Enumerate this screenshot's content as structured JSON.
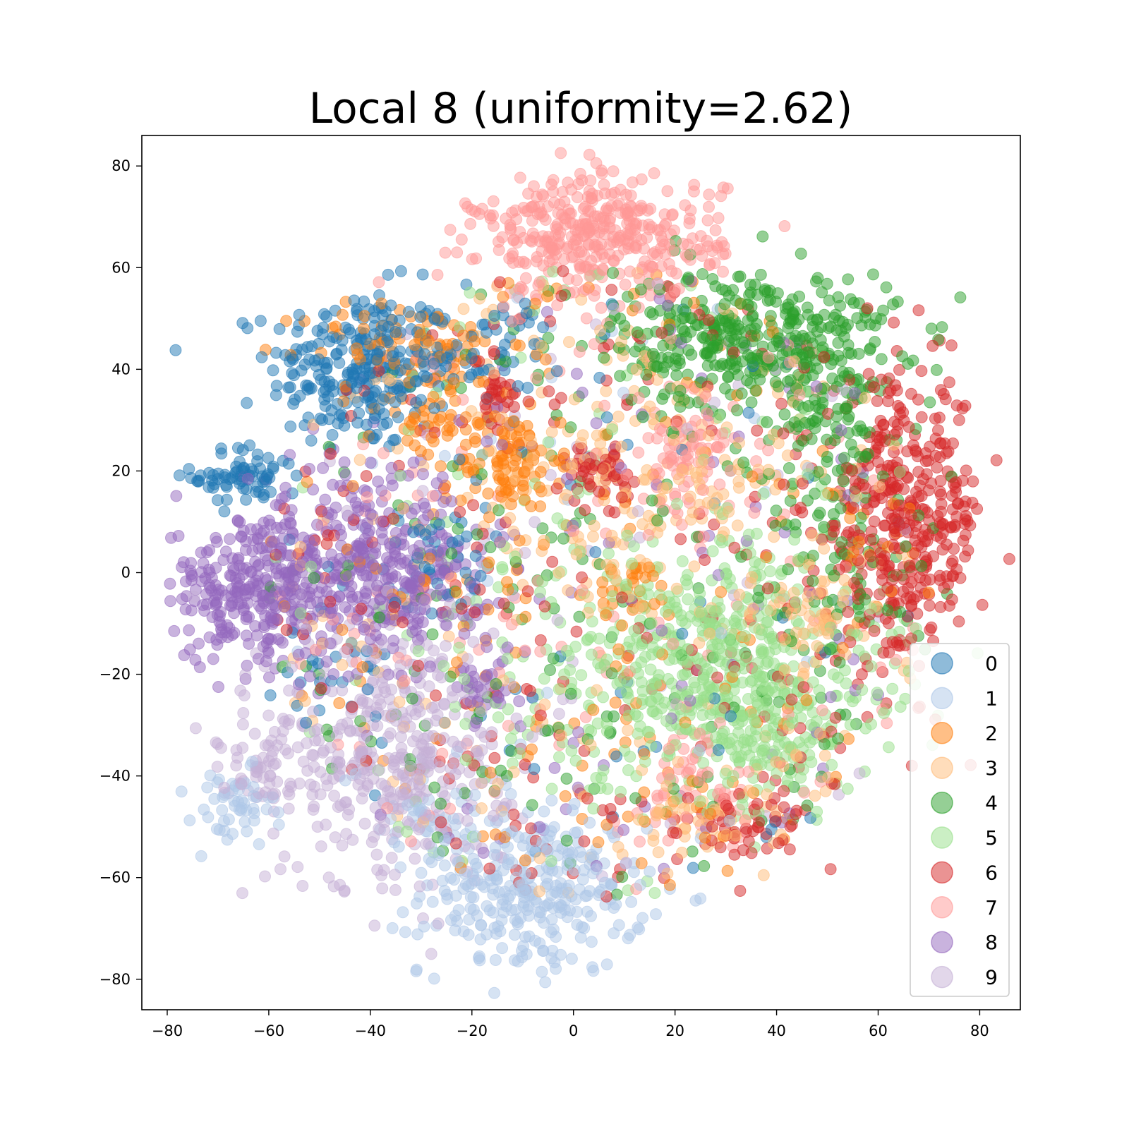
{
  "chart_data": {
    "type": "scatter",
    "title": "Local 8 (uniformity=2.62)",
    "xlabel": "",
    "ylabel": "",
    "xlim": [
      -85,
      88
    ],
    "ylim": [
      -86,
      86
    ],
    "xticks": [
      -80,
      -60,
      -40,
      -20,
      0,
      20,
      40,
      60,
      80
    ],
    "yticks": [
      -80,
      -60,
      -40,
      -20,
      0,
      20,
      40,
      60,
      80
    ],
    "xtick_labels": [
      "−80",
      "−60",
      "−40",
      "−20",
      "0",
      "20",
      "40",
      "60",
      "80"
    ],
    "ytick_labels": [
      "−80",
      "−60",
      "−40",
      "−20",
      "0",
      "20",
      "40",
      "60",
      "80"
    ],
    "grid": false,
    "legend_position": "lower-right",
    "marker_alpha": 0.5,
    "series": [
      {
        "name": "0",
        "color": "#1f77b4",
        "clusters": [
          {
            "center": [
              -42,
              40
            ],
            "spread": [
              9,
              8
            ],
            "count": 260
          },
          {
            "center": [
              -65,
              19
            ],
            "spread": [
              5,
              3
            ],
            "count": 70
          },
          {
            "center": [
              -27,
              3
            ],
            "spread": [
              5,
              5
            ],
            "count": 40
          },
          {
            "center": [
              -20,
              44
            ],
            "spread": [
              9,
              5
            ],
            "count": 60
          },
          {
            "center": [
              -48,
              -22
            ],
            "spread": [
              5,
              3
            ],
            "count": 20
          }
        ],
        "scatter_count": 60
      },
      {
        "name": "1",
        "color": "#aec7e8",
        "clusters": [
          {
            "center": [
              -8,
              -63
            ],
            "spread": [
              11,
              8
            ],
            "count": 300
          },
          {
            "center": [
              -67,
              -47
            ],
            "spread": [
              4,
              4
            ],
            "count": 50
          },
          {
            "center": [
              -30,
              -48
            ],
            "spread": [
              8,
              7
            ],
            "count": 40
          }
        ],
        "scatter_count": 40
      },
      {
        "name": "2",
        "color": "#ff7f0e",
        "clusters": [
          {
            "center": [
              -13,
              22
            ],
            "spread": [
              5,
              5
            ],
            "count": 90
          },
          {
            "center": [
              -33,
              45
            ],
            "spread": [
              10,
              4
            ],
            "count": 70
          },
          {
            "center": [
              -27,
              33
            ],
            "spread": [
              5,
              4
            ],
            "count": 40
          },
          {
            "center": [
              12,
              -4
            ],
            "spread": [
              4,
              3
            ],
            "count": 30
          }
        ],
        "scatter_count": 200
      },
      {
        "name": "3",
        "color": "#ffbb78",
        "clusters": [
          {
            "center": [
              15,
              20
            ],
            "spread": [
              15,
              12
            ],
            "count": 150
          },
          {
            "center": [
              45,
              -10
            ],
            "spread": [
              8,
              5
            ],
            "count": 60
          },
          {
            "center": [
              25,
              -48
            ],
            "spread": [
              6,
              4
            ],
            "count": 40
          }
        ],
        "scatter_count": 220
      },
      {
        "name": "4",
        "color": "#2ca02c",
        "clusters": [
          {
            "center": [
              36,
              46
            ],
            "spread": [
              14,
              7
            ],
            "count": 380
          },
          {
            "center": [
              55,
              5
            ],
            "spread": [
              8,
              12
            ],
            "count": 80
          },
          {
            "center": [
              48,
              30
            ],
            "spread": [
              8,
              6
            ],
            "count": 60
          }
        ],
        "scatter_count": 200
      },
      {
        "name": "5",
        "color": "#98df8a",
        "clusters": [
          {
            "center": [
              25,
              -18
            ],
            "spread": [
              18,
              12
            ],
            "count": 480
          },
          {
            "center": [
              40,
              -30
            ],
            "spread": [
              9,
              6
            ],
            "count": 120
          }
        ],
        "scatter_count": 160
      },
      {
        "name": "6",
        "color": "#d62728",
        "clusters": [
          {
            "center": [
              65,
              10
            ],
            "spread": [
              8,
              14
            ],
            "count": 380
          },
          {
            "center": [
              5,
              19
            ],
            "spread": [
              3,
              3
            ],
            "count": 45
          },
          {
            "center": [
              -15,
              35
            ],
            "spread": [
              2,
              3
            ],
            "count": 30
          },
          {
            "center": [
              35,
              -50
            ],
            "spread": [
              6,
              4
            ],
            "count": 50
          }
        ],
        "scatter_count": 250
      },
      {
        "name": "7",
        "color": "#ff9896",
        "clusters": [
          {
            "center": [
              5,
              66
            ],
            "spread": [
              12,
              6
            ],
            "count": 380
          },
          {
            "center": [
              22,
              22
            ],
            "spread": [
              5,
              6
            ],
            "count": 80
          },
          {
            "center": [
              25,
              -40
            ],
            "spread": [
              5,
              5
            ],
            "count": 40
          }
        ],
        "scatter_count": 150
      },
      {
        "name": "8",
        "color": "#9467bd",
        "clusters": [
          {
            "center": [
              -63,
              -3
            ],
            "spread": [
              8,
              7
            ],
            "count": 280
          },
          {
            "center": [
              -38,
              -1
            ],
            "spread": [
              11,
              7
            ],
            "count": 300
          },
          {
            "center": [
              -17,
              -23
            ],
            "spread": [
              3,
              3
            ],
            "count": 30
          },
          {
            "center": [
              -47,
              15
            ],
            "spread": [
              10,
              6
            ],
            "count": 60
          }
        ],
        "scatter_count": 120
      },
      {
        "name": "9",
        "color": "#c5b0d5",
        "clusters": [
          {
            "center": [
              -36,
              -35
            ],
            "spread": [
              12,
              14
            ],
            "count": 420
          },
          {
            "center": [
              -62,
              -38
            ],
            "spread": [
              4,
              4
            ],
            "count": 50
          }
        ],
        "scatter_count": 60
      }
    ]
  }
}
